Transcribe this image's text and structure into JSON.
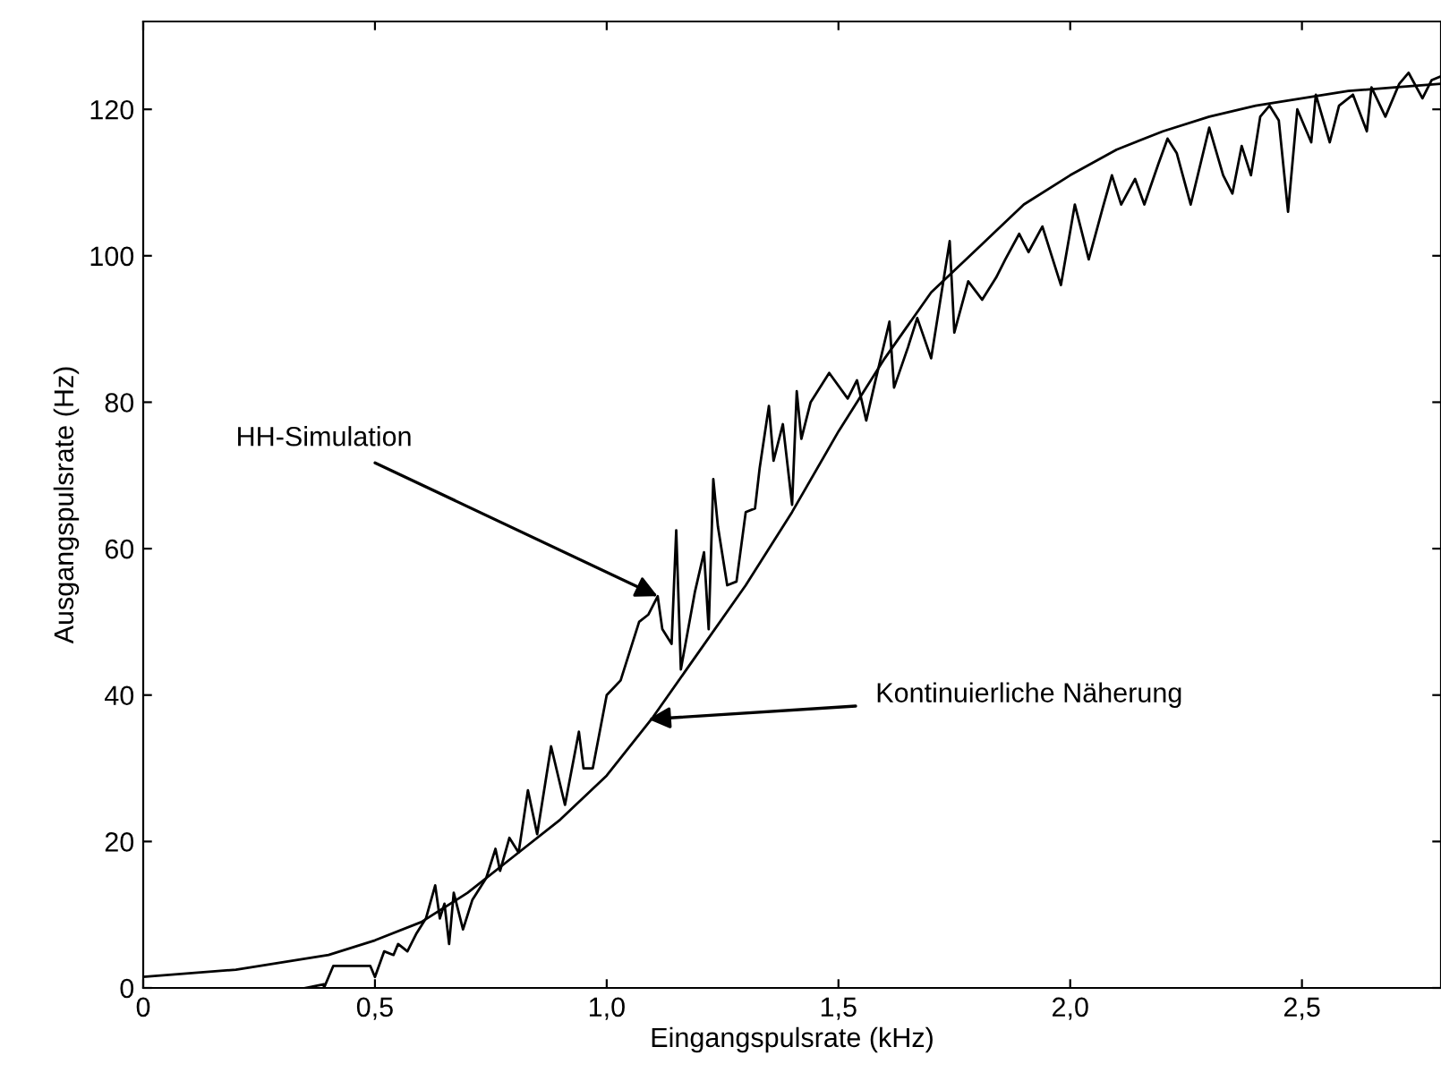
{
  "chart_data": {
    "type": "line",
    "xlabel": "Eingangspulsrate (kHz)",
    "ylabel": "Ausgangspulsrate (Hz)",
    "xlim": [
      0,
      2.8
    ],
    "ylim": [
      0,
      132
    ],
    "xticks": [
      0,
      {
        "value": 0.5,
        "label": "0,5"
      },
      {
        "value": 1.0,
        "label": "1,0"
      },
      {
        "value": 1.5,
        "label": "1,5"
      },
      {
        "value": 2.0,
        "label": "2,0"
      },
      {
        "value": 2.5,
        "label": "2,5"
      }
    ],
    "yticks": [
      0,
      20,
      40,
      60,
      80,
      100,
      120
    ],
    "grid": false,
    "legend": false,
    "marker": "none",
    "line_style": "solid",
    "series": [
      {
        "color": "#000000",
        "x": [
          0.35,
          0.39,
          0.39,
          0.41,
          0.45,
          0.49,
          0.5,
          0.52,
          0.54,
          0.55,
          0.57,
          0.59,
          0.61,
          0.63,
          0.64,
          0.65,
          0.66,
          0.67,
          0.69,
          0.71,
          0.74,
          0.76,
          0.77,
          0.79,
          0.81,
          0.83,
          0.85,
          0.88,
          0.91,
          0.94,
          0.95,
          0.97,
          1.0,
          1.03,
          1.07,
          1.09,
          1.11,
          1.12,
          1.14,
          1.15,
          1.16,
          1.19,
          1.21,
          1.22,
          1.23,
          1.24,
          1.26,
          1.28,
          1.3,
          1.32,
          1.33,
          1.35,
          1.36,
          1.38,
          1.4,
          1.41,
          1.42,
          1.44,
          1.48,
          1.52,
          1.54,
          1.56,
          1.58,
          1.61,
          1.62,
          1.65,
          1.67,
          1.7,
          1.74,
          1.75,
          1.78,
          1.81,
          1.84,
          1.86,
          1.89,
          1.91,
          1.94,
          1.98,
          2.01,
          2.04,
          2.07,
          2.09,
          2.11,
          2.14,
          2.16,
          2.19,
          2.21,
          2.23,
          2.26,
          2.3,
          2.33,
          2.35,
          2.37,
          2.39,
          2.41,
          2.43,
          2.45,
          2.47,
          2.49,
          2.52,
          2.53,
          2.56,
          2.58,
          2.61,
          2.64,
          2.65,
          2.68,
          2.71,
          2.73,
          2.76,
          2.78,
          2.8
        ],
        "values": [
          0,
          0.5,
          0,
          3,
          3,
          3,
          1.5,
          5,
          4.5,
          6,
          5,
          7.5,
          9.5,
          14,
          9.5,
          11.5,
          6,
          13,
          8,
          12,
          15,
          19,
          16,
          20.5,
          18.5,
          27,
          21,
          33,
          25,
          35,
          30,
          30,
          40,
          42,
          50,
          51,
          53.5,
          49,
          47,
          62.5,
          43.5,
          54,
          59.5,
          49,
          69.5,
          63,
          55,
          55.5,
          65,
          65.5,
          71,
          79.5,
          72,
          77,
          66,
          81.5,
          75,
          80,
          84,
          80.5,
          83,
          77.5,
          83,
          91,
          82,
          87.5,
          91.5,
          86,
          102,
          89.5,
          96.5,
          94,
          97,
          99.5,
          103,
          100.5,
          104,
          96,
          107,
          99.5,
          106.5,
          111,
          107,
          110.5,
          107,
          112.5,
          116,
          114,
          107,
          117.5,
          111,
          108.5,
          115,
          111,
          119,
          120.5,
          118.5,
          106,
          120,
          115.5,
          122,
          115.5,
          120.5,
          122,
          117,
          123,
          119,
          123.5,
          125,
          121.5,
          124,
          124.5
        ]
      },
      {
        "color": "#000000",
        "x": [
          0,
          0.2,
          0.4,
          0.5,
          0.6,
          0.7,
          0.8,
          0.9,
          1.0,
          1.1,
          1.2,
          1.3,
          1.4,
          1.5,
          1.6,
          1.7,
          1.8,
          1.9,
          2.0,
          2.1,
          2.2,
          2.3,
          2.4,
          2.5,
          2.6,
          2.7,
          2.8
        ],
        "values": [
          1.5,
          2.5,
          4.5,
          6.5,
          9,
          13,
          18,
          23,
          29,
          37,
          46,
          55,
          65,
          76,
          86,
          95,
          101,
          107,
          111,
          114.5,
          117,
          119,
          120.5,
          121.5,
          122.5,
          123,
          123.5
        ]
      }
    ],
    "annotations": [
      {
        "text": "HH-Simulation",
        "x": 1.11,
        "y": 53.5
      },
      {
        "text": "Kontinuierliche Näherung",
        "x": 1.09,
        "y": 36.7
      }
    ]
  }
}
